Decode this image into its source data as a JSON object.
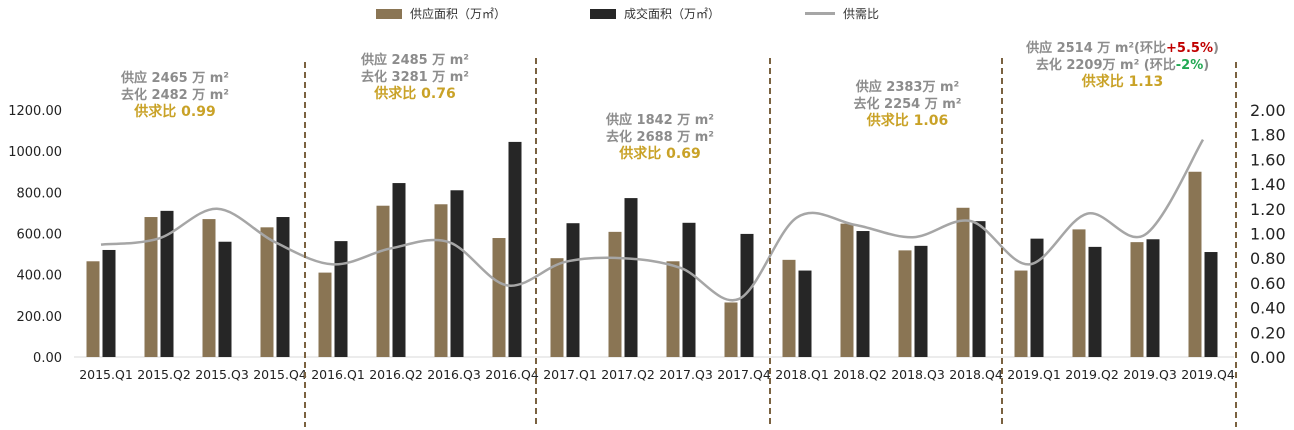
{
  "legend": {
    "supply": "供应面积（万㎡）",
    "deal": "成交面积（万㎡）",
    "ratio": "供需比"
  },
  "annotations": [
    {
      "supply": "供应 2465 万 m²",
      "deal": "去化 2482 万 m²",
      "ratio": "供求比 0.99"
    },
    {
      "supply": "供应 2485 万 m²",
      "deal": "去化 3281 万 m²",
      "ratio": "供求比 0.76"
    },
    {
      "supply": "供应 1842 万 m²",
      "deal": "去化 2688 万 m²",
      "ratio": "供求比 0.69"
    },
    {
      "supply": "供应 2383万 m²",
      "deal": "去化  2254 万 m²",
      "ratio": "供求比 1.06"
    },
    {
      "supply_prefix": "供应 2514 万 m²(环比",
      "supply_change": "+5.5%",
      "supply_suffix": ")",
      "deal_prefix": "去化 2209万 m² (环比",
      "deal_change": "-2%",
      "deal_suffix": ")",
      "ratio": "供求比  1.13"
    }
  ],
  "chart_data": {
    "type": "bar",
    "categories": [
      "2015.Q1",
      "2015.Q2",
      "2015.Q3",
      "2015.Q4",
      "2016.Q1",
      "2016.Q2",
      "2016.Q3",
      "2016.Q4",
      "2017.Q1",
      "2017.Q2",
      "2017.Q3",
      "2017.Q4",
      "2018.Q1",
      "2018.Q2",
      "2018.Q3",
      "2018.Q4",
      "2019.Q1",
      "2019.Q2",
      "2019.Q3",
      "2019.Q4"
    ],
    "series": [
      {
        "name": "供应面积（万㎡）",
        "type": "bar",
        "axis": "left",
        "color": "#8a7554",
        "values": [
          465,
          680,
          670,
          630,
          410,
          735,
          742,
          578,
          480,
          608,
          465,
          265,
          472,
          648,
          518,
          725,
          420,
          620,
          558,
          900
        ]
      },
      {
        "name": "成交面积（万㎡）",
        "type": "bar",
        "axis": "left",
        "color": "#262626",
        "values": [
          520,
          710,
          560,
          680,
          563,
          845,
          810,
          1045,
          650,
          772,
          652,
          598,
          420,
          612,
          540,
          660,
          575,
          535,
          572,
          510
        ]
      },
      {
        "name": "供需比",
        "type": "line",
        "axis": "right",
        "color": "#a6a6a6",
        "values": [
          0.91,
          0.96,
          1.2,
          0.93,
          0.75,
          0.88,
          0.93,
          0.58,
          0.77,
          0.8,
          0.72,
          0.47,
          1.13,
          1.07,
          0.97,
          1.1,
          0.75,
          1.16,
          0.99,
          1.76
        ]
      }
    ],
    "y_left": {
      "min": 0,
      "max": 1200,
      "ticks": [
        "0.00",
        "200.00",
        "400.00",
        "600.00",
        "800.00",
        "1000.00",
        "1200.00"
      ]
    },
    "y_right": {
      "min": 0,
      "max": 2.0,
      "ticks": [
        "0.00",
        "0.20",
        "0.40",
        "0.60",
        "0.80",
        "1.00",
        "1.20",
        "1.40",
        "1.60",
        "1.80",
        "2.00"
      ]
    },
    "separator_color": "#7a6240",
    "grid": false,
    "legend_position": "top-center"
  }
}
